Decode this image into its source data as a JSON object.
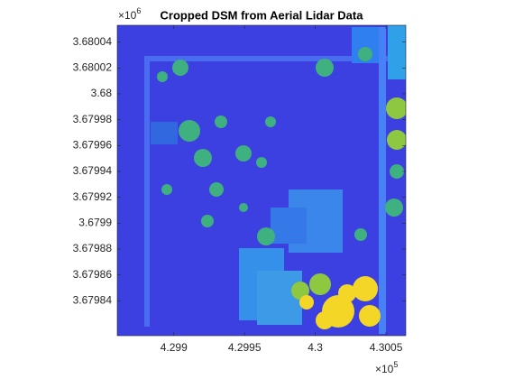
{
  "chart_data": {
    "type": "image",
    "title": "Cropped DSM from Aerial Lidar Data",
    "xlim": [
      4.2986,
      4.30064
    ],
    "ylim": [
      3.679813,
      3.680053
    ],
    "xticks": [
      4.299,
      4.2995,
      4.3,
      4.3005
    ],
    "yticks": [
      3.67984,
      3.67986,
      3.67988,
      3.6799,
      3.67992,
      3.67994,
      3.67996,
      3.67998,
      3.68,
      3.68002,
      3.68004
    ],
    "x_multiplier": "×10",
    "x_exponent": 5,
    "y_multiplier": "×10",
    "y_exponent": 6
  }
}
